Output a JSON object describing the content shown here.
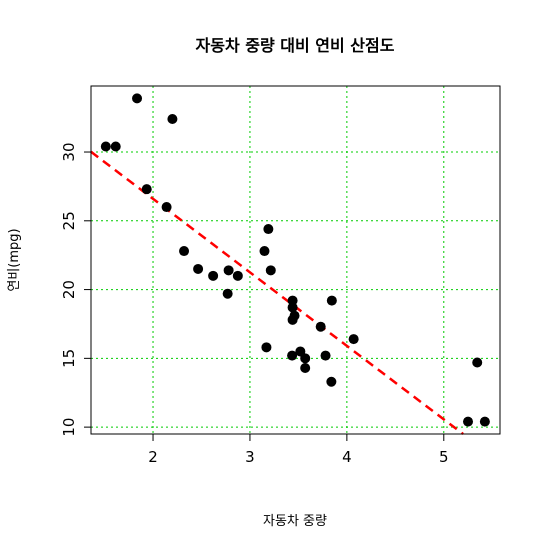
{
  "chart_data": {
    "type": "scatter",
    "title": "자동차 중량 대비 연비 산점도",
    "xlabel": "자동차 중량",
    "ylabel": "연비(mpg)",
    "xlim": [
      1.36,
      5.58
    ],
    "ylim": [
      9.5,
      34.8
    ],
    "x_ticks": [
      2,
      3,
      4,
      5
    ],
    "y_ticks": [
      10,
      15,
      20,
      25,
      30
    ],
    "grid": true,
    "grid_color": "#00cc00",
    "point_color": "#000000",
    "trend_color": "#ff0000",
    "points": [
      {
        "x": 1.513,
        "y": 30.4
      },
      {
        "x": 1.615,
        "y": 30.4
      },
      {
        "x": 1.835,
        "y": 33.9
      },
      {
        "x": 1.935,
        "y": 27.3
      },
      {
        "x": 2.14,
        "y": 26.0
      },
      {
        "x": 2.2,
        "y": 32.4
      },
      {
        "x": 2.32,
        "y": 22.8
      },
      {
        "x": 2.465,
        "y": 21.5
      },
      {
        "x": 2.62,
        "y": 21.0
      },
      {
        "x": 2.77,
        "y": 19.7
      },
      {
        "x": 2.78,
        "y": 21.4
      },
      {
        "x": 2.875,
        "y": 21.0
      },
      {
        "x": 3.15,
        "y": 22.8
      },
      {
        "x": 3.17,
        "y": 15.8
      },
      {
        "x": 3.19,
        "y": 24.4
      },
      {
        "x": 3.215,
        "y": 21.4
      },
      {
        "x": 3.435,
        "y": 15.2
      },
      {
        "x": 3.44,
        "y": 18.7
      },
      {
        "x": 3.44,
        "y": 19.2
      },
      {
        "x": 3.44,
        "y": 17.8
      },
      {
        "x": 3.46,
        "y": 18.1
      },
      {
        "x": 3.52,
        "y": 15.5
      },
      {
        "x": 3.57,
        "y": 15.0
      },
      {
        "x": 3.57,
        "y": 14.3
      },
      {
        "x": 3.73,
        "y": 17.3
      },
      {
        "x": 3.78,
        "y": 15.2
      },
      {
        "x": 3.84,
        "y": 13.3
      },
      {
        "x": 3.845,
        "y": 19.2
      },
      {
        "x": 4.07,
        "y": 16.4
      },
      {
        "x": 5.25,
        "y": 10.4
      },
      {
        "x": 5.345,
        "y": 14.7
      },
      {
        "x": 5.424,
        "y": 10.4
      }
    ],
    "trend_line": {
      "intercept": 37.285,
      "slope": -5.344
    }
  }
}
